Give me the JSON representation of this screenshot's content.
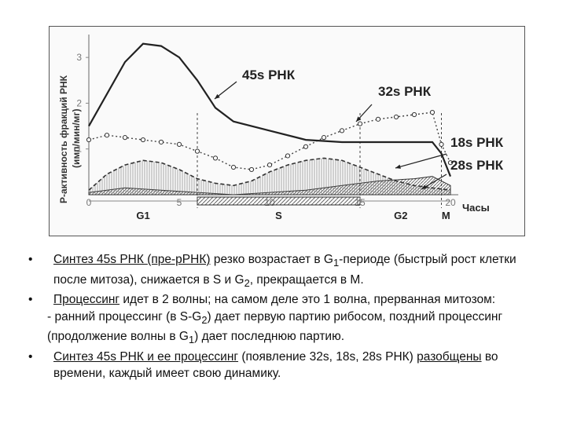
{
  "chart_data": {
    "type": "line",
    "ylabel_line1": "Р-активность фракций РНК",
    "ylabel_line2": "(имп/мин/мг)",
    "xlabel": "Часы",
    "x_ticks": [
      "0",
      "5",
      "10",
      "15",
      "20"
    ],
    "y_ticks": [
      "1",
      "2",
      "3"
    ],
    "xlim": [
      0,
      20
    ],
    "ylim": [
      0,
      3.5
    ],
    "phases": [
      {
        "label": "G1",
        "start": 0,
        "end": 6
      },
      {
        "label": "S",
        "start": 6,
        "end": 15
      },
      {
        "label": "G2",
        "start": 15,
        "end": 19.5
      },
      {
        "label": "M",
        "start": 19.5,
        "end": 21
      }
    ],
    "series": [
      {
        "name": "45s РНК",
        "style": "solid",
        "x": [
          0,
          1,
          2,
          3,
          4,
          5,
          6,
          7,
          8,
          10,
          12,
          14,
          16,
          18,
          19,
          19.5,
          20
        ],
        "y": [
          1.5,
          2.2,
          2.9,
          3.3,
          3.25,
          3.0,
          2.5,
          1.9,
          1.6,
          1.4,
          1.2,
          1.15,
          1.15,
          1.15,
          1.15,
          0.9,
          0.4
        ]
      },
      {
        "name": "32s РНК",
        "style": "dotted-circles",
        "x": [
          0,
          1,
          2,
          3,
          4,
          5,
          6,
          7,
          8,
          9,
          10,
          11,
          12,
          13,
          14,
          15,
          16,
          17,
          18,
          19,
          19.5,
          20
        ],
        "y": [
          1.2,
          1.3,
          1.25,
          1.2,
          1.15,
          1.1,
          0.95,
          0.8,
          0.6,
          0.55,
          0.65,
          0.85,
          1.05,
          1.25,
          1.4,
          1.55,
          1.65,
          1.7,
          1.75,
          1.8,
          1.1,
          0.7
        ]
      },
      {
        "name": "18s РНК",
        "style": "dashed-filled",
        "x": [
          0,
          1,
          2,
          3,
          4,
          5,
          6,
          7,
          8,
          9,
          10,
          11,
          12,
          13,
          14,
          15,
          16,
          17,
          18,
          19,
          20
        ],
        "y": [
          0.1,
          0.45,
          0.65,
          0.75,
          0.7,
          0.55,
          0.35,
          0.25,
          0.2,
          0.3,
          0.5,
          0.65,
          0.75,
          0.8,
          0.75,
          0.6,
          0.45,
          0.3,
          0.2,
          0.15,
          0.1
        ]
      },
      {
        "name": "28s РНК",
        "style": "hatched",
        "x": [
          0,
          2,
          4,
          6,
          8,
          10,
          12,
          14,
          16,
          18,
          19,
          20
        ],
        "y": [
          0.05,
          0.15,
          0.1,
          0.05,
          0.0,
          0.05,
          0.1,
          0.2,
          0.3,
          0.35,
          0.4,
          0.2
        ]
      }
    ],
    "legend": "series-labels-with-arrows"
  },
  "bullets": [
    {
      "parts": [
        {
          "t": "Синтез 45s РНК ",
          "u": true
        },
        {
          "t": "(пре-рРНК)",
          "u": true
        },
        {
          "t": " резко возрастает в G"
        },
        {
          "t": "1",
          "sub": true
        },
        {
          "t": "-периоде (быстрый рост клетки после митоза), снижается в S и G"
        },
        {
          "t": "2",
          "sub": true
        },
        {
          "t": ", прекращается в M."
        }
      ]
    },
    {
      "parts": [
        {
          "t": "Процессинг",
          "u": true
        },
        {
          "t": " идет в 2 волны; на самом деле это 1 волна, прерванная митозом:"
        }
      ]
    },
    {
      "sub": true,
      "parts": [
        {
          "t": "- ранний процессинг (в S-G"
        },
        {
          "t": "2",
          "sub": true
        },
        {
          "t": ") дает первую партию рибосом, поздний процессинг (продолжение волны в G"
        },
        {
          "t": "1",
          "sub": true
        },
        {
          "t": ") дает последнюю партию."
        }
      ]
    },
    {
      "parts": [
        {
          "t": "Синтез 45s РНК и ее процессинг",
          "u": true
        },
        {
          "t": " (появление 32s, 18s, 28s РНК) "
        },
        {
          "t": "разобщены",
          "u": true
        },
        {
          "t": " во времени, каждый имеет свою динамику."
        }
      ]
    }
  ]
}
